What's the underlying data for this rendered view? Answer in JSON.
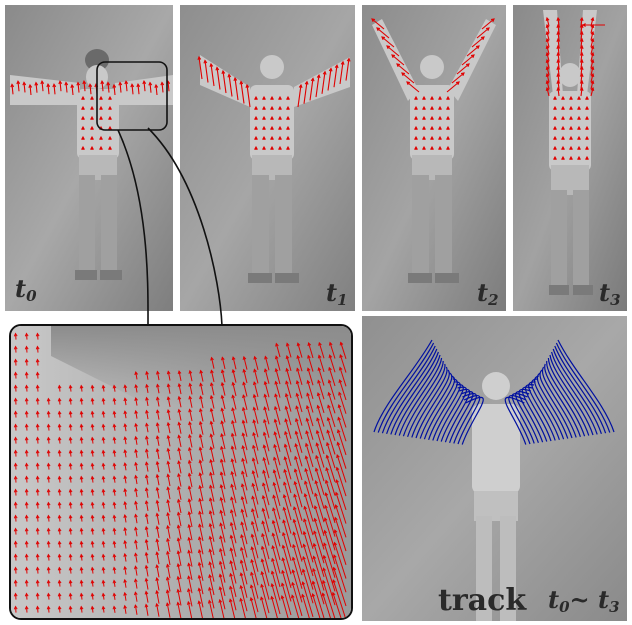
{
  "frames": [
    {
      "id": "t0",
      "base": "t",
      "sub": "0"
    },
    {
      "id": "t1",
      "base": "t",
      "sub": "1"
    },
    {
      "id": "t2",
      "base": "t",
      "sub": "2"
    },
    {
      "id": "t3",
      "base": "t",
      "sub": "3"
    }
  ],
  "track_panel": {
    "label": "track",
    "range_from_base": "t",
    "range_from_sub": "0",
    "range_sep": "~",
    "range_to_base": "t",
    "range_to_sub": "3"
  },
  "colors": {
    "flow_vectors": "#e00000",
    "track_lines": "#0010a0",
    "label_text": "#2a2a2a"
  }
}
